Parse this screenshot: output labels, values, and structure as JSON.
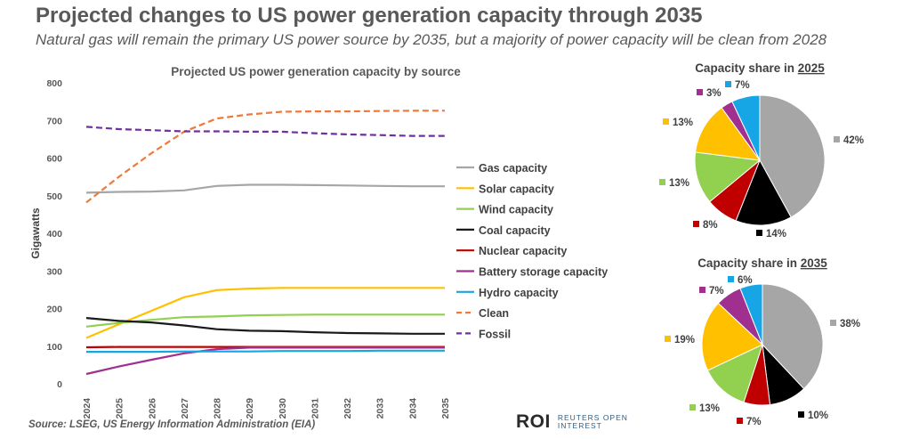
{
  "title": "Projected changes to US power generation capacity through 2035",
  "subtitle": "Natural gas will remain the primary US power source by 2035, but a majority of power capacity will be clean from 2028",
  "source": "Source: LSEG, US Energy Information Administration (EIA)",
  "brand": {
    "mark": "ROI",
    "name": "REUTERS OPEN INTEREST"
  },
  "chart_data": [
    {
      "type": "line",
      "title": "Projected US power generation capacity by source",
      "xlabel": "",
      "ylabel": "Gigawatts",
      "ylim": [
        0,
        800
      ],
      "yticks": [
        "0",
        "100",
        "200",
        "300",
        "400",
        "500",
        "600",
        "700",
        "800"
      ],
      "categories": [
        "2024",
        "2025",
        "2026",
        "2027",
        "2028",
        "2029",
        "2030",
        "2031",
        "2032",
        "2033",
        "2034",
        "2035"
      ],
      "legend_position": "right",
      "series": [
        {
          "name": "Gas capacity",
          "color": "#a6a6a6",
          "dashed": false,
          "values": [
            508,
            510,
            511,
            514,
            526,
            529,
            529,
            528,
            527,
            526,
            525,
            525
          ]
        },
        {
          "name": "Solar capacity",
          "color": "#ffc000",
          "dashed": false,
          "values": [
            122,
            158,
            194,
            230,
            249,
            253,
            255,
            255,
            255,
            255,
            255,
            255
          ]
        },
        {
          "name": "Wind capacity",
          "color": "#92d050",
          "dashed": false,
          "values": [
            152,
            162,
            170,
            177,
            179,
            182,
            183,
            184,
            184,
            184,
            184,
            184
          ]
        },
        {
          "name": "Coal capacity",
          "color": "#1a1a1a",
          "dashed": false,
          "values": [
            175,
            167,
            163,
            155,
            145,
            141,
            140,
            137,
            135,
            134,
            133,
            133
          ]
        },
        {
          "name": "Nuclear capacity",
          "color": "#c00000",
          "dashed": false,
          "values": [
            97,
            98,
            98,
            98,
            98,
            98,
            98,
            98,
            98,
            98,
            98,
            98
          ]
        },
        {
          "name": "Battery storage capacity",
          "color": "#a0308f",
          "dashed": false,
          "values": [
            26,
            46,
            64,
            81,
            92,
            96,
            96,
            96,
            96,
            96,
            96,
            96
          ]
        },
        {
          "name": "Hydro capacity",
          "color": "#17a6e5",
          "dashed": false,
          "values": [
            85,
            85,
            85,
            86,
            86,
            86,
            87,
            87,
            87,
            88,
            88,
            88
          ]
        },
        {
          "name": "Clean",
          "color": "#f0793a",
          "dashed": true,
          "values": [
            482,
            550,
            613,
            670,
            705,
            716,
            723,
            724,
            724,
            725,
            726,
            726
          ]
        },
        {
          "name": "Fossil",
          "color": "#7030a0",
          "dashed": true,
          "values": [
            683,
            677,
            674,
            671,
            671,
            670,
            670,
            666,
            663,
            661,
            659,
            659
          ]
        }
      ]
    },
    {
      "type": "pie",
      "title_prefix": "Capacity share in ",
      "title_year": "2025",
      "slices": [
        {
          "name": "Gas",
          "value": 42,
          "label": "42%",
          "color": "#a6a6a6"
        },
        {
          "name": "Coal",
          "value": 14,
          "label": "14%",
          "color": "#000000"
        },
        {
          "name": "Nuclear",
          "value": 8,
          "label": "8%",
          "color": "#c00000"
        },
        {
          "name": "Wind",
          "value": 13,
          "label": "13%",
          "color": "#92d050"
        },
        {
          "name": "Solar",
          "value": 13,
          "label": "13%",
          "color": "#ffc000"
        },
        {
          "name": "Battery storage",
          "value": 3,
          "label": "3%",
          "color": "#a0308f"
        },
        {
          "name": "Hydro",
          "value": 7,
          "label": "7%",
          "color": "#17a6e5"
        }
      ]
    },
    {
      "type": "pie",
      "title_prefix": "Capacity share in ",
      "title_year": "2035",
      "slices": [
        {
          "name": "Gas",
          "value": 38,
          "label": "38%",
          "color": "#a6a6a6"
        },
        {
          "name": "Coal",
          "value": 10,
          "label": "10%",
          "color": "#000000"
        },
        {
          "name": "Nuclear",
          "value": 7,
          "label": "7%",
          "color": "#c00000"
        },
        {
          "name": "Wind",
          "value": 13,
          "label": "13%",
          "color": "#92d050"
        },
        {
          "name": "Solar",
          "value": 19,
          "label": "19%",
          "color": "#ffc000"
        },
        {
          "name": "Battery storage",
          "value": 7,
          "label": "7%",
          "color": "#a0308f"
        },
        {
          "name": "Hydro",
          "value": 6,
          "label": "6%",
          "color": "#17a6e5"
        }
      ]
    }
  ]
}
